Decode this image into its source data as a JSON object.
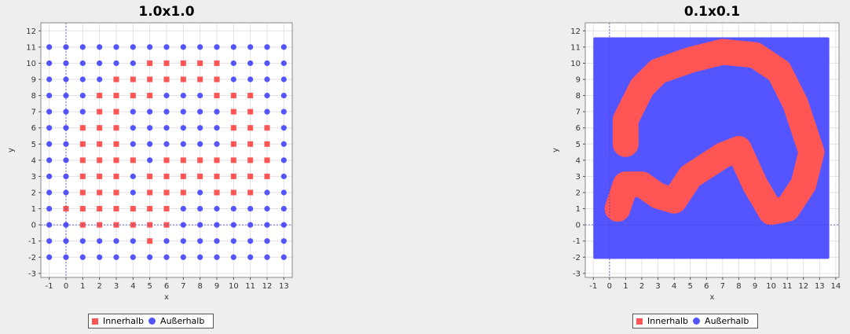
{
  "colors": {
    "inside": "#ff5555",
    "outside": "#5555ff"
  },
  "legend": {
    "inside_label": "Innerhalb",
    "outside_label": "Außerhalb"
  },
  "chart_data": [
    {
      "type": "scatter",
      "title": "1.0x1.0",
      "xlabel": "x",
      "ylabel": "y",
      "xlim": [
        -1.5,
        13.5
      ],
      "ylim": [
        -3.25,
        12.5
      ],
      "xticks": [
        -1,
        0,
        1,
        2,
        3,
        4,
        5,
        6,
        7,
        8,
        9,
        10,
        11,
        12,
        13
      ],
      "yticks": [
        -3,
        -2,
        -1,
        0,
        1,
        2,
        3,
        4,
        5,
        6,
        7,
        8,
        9,
        10,
        11,
        12
      ],
      "grid": true,
      "crosshair": {
        "x": 0,
        "y": 0
      },
      "legend_position": "bottom",
      "grid_x_range": [
        -1,
        13
      ],
      "grid_y_range": [
        -2,
        11
      ],
      "series": [
        {
          "name": "Innerhalb",
          "marker": "square",
          "rows": [
            {
              "y": 10,
              "x": [
                5,
                6,
                7,
                8,
                9
              ]
            },
            {
              "y": 9,
              "x": [
                3,
                4,
                5,
                6,
                7,
                8,
                9
              ]
            },
            {
              "y": 8,
              "x": [
                2,
                3,
                4,
                5,
                9,
                10,
                11
              ]
            },
            {
              "y": 7,
              "x": [
                2,
                3,
                10,
                11
              ]
            },
            {
              "y": 6,
              "x": [
                1,
                2,
                3,
                10,
                11,
                12
              ]
            },
            {
              "y": 5,
              "x": [
                1,
                2,
                3,
                10,
                11,
                12
              ]
            },
            {
              "y": 4,
              "x": [
                1,
                2,
                3,
                4,
                6,
                7,
                8,
                9,
                10,
                11,
                12
              ]
            },
            {
              "y": 3,
              "x": [
                1,
                2,
                3,
                5,
                6,
                7,
                8,
                9,
                10,
                11,
                12
              ]
            },
            {
              "y": 2,
              "x": [
                1,
                2,
                3,
                5,
                6,
                7,
                9,
                10,
                11
              ]
            },
            {
              "y": 1,
              "x": [
                0,
                1,
                2,
                3,
                4,
                5,
                6
              ]
            },
            {
              "y": 0,
              "x": [
                1,
                2,
                3,
                4,
                5,
                6
              ]
            },
            {
              "y": -1,
              "x": [
                5
              ]
            }
          ]
        },
        {
          "name": "Außerhalb",
          "marker": "circle",
          "note": "all remaining grid points"
        }
      ]
    },
    {
      "type": "scatter",
      "title": "0.1x0.1",
      "xlabel": "x",
      "ylabel": "y",
      "xlim": [
        -1.5,
        14.2
      ],
      "ylim": [
        -3.25,
        12.5
      ],
      "xticks": [
        -1,
        0,
        1,
        2,
        3,
        4,
        5,
        6,
        7,
        8,
        9,
        10,
        11,
        12,
        13,
        14
      ],
      "yticks": [
        -3,
        -2,
        -1,
        0,
        1,
        2,
        3,
        4,
        5,
        6,
        7,
        8,
        9,
        10,
        11,
        12
      ],
      "grid": true,
      "crosshair": {
        "x": 0,
        "y": 0
      },
      "legend_position": "bottom",
      "outside_region": {
        "x": [
          -1,
          13.6
        ],
        "y": [
          -2.1,
          11.6
        ]
      },
      "inside_region": {
        "band_upper": [
          [
            1,
            5
          ],
          [
            1,
            6.5
          ],
          [
            1.5,
            7.5
          ],
          [
            2,
            8.5
          ],
          [
            3,
            9.5
          ],
          [
            5,
            10.2
          ],
          [
            7,
            10.7
          ],
          [
            9,
            10.5
          ],
          [
            10.5,
            9.5
          ],
          [
            11.5,
            7.5
          ],
          [
            12.5,
            4.5
          ],
          [
            12,
            2.5
          ],
          [
            11,
            1
          ],
          [
            10,
            0.8
          ],
          [
            9,
            2.5
          ],
          [
            8,
            4.7
          ],
          [
            7,
            4.3
          ],
          [
            5,
            3
          ],
          [
            4,
            1.5
          ],
          [
            3,
            1.8
          ],
          [
            2,
            2.5
          ],
          [
            1,
            2.5
          ],
          [
            0.5,
            1
          ]
        ],
        "band_thickness": 1.6
      },
      "series": [
        {
          "name": "Innerhalb",
          "marker": "square"
        },
        {
          "name": "Außerhalb",
          "marker": "circle"
        }
      ]
    }
  ]
}
